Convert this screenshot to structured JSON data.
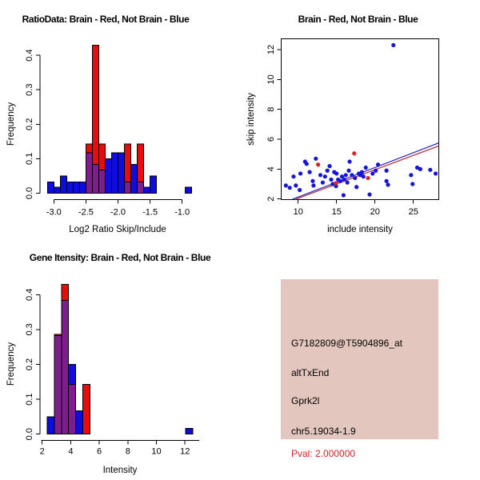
{
  "window": {
    "background": "#ffffff"
  },
  "colors": {
    "hist_blue": "#0D0DE0",
    "hist_red": "#EA0B0B",
    "hist_overlap": "#7D1E8C",
    "point_blue": "#1414DC",
    "point_red": "#E02020",
    "fit_line_blue": "#2020C0",
    "fit_line_red": "#C02020",
    "info_bg": "#E3C7BE",
    "pval_red": "#CD2626",
    "axis": "#000000"
  },
  "chart_data": [
    {
      "id": "ratio-histogram",
      "type": "bar",
      "title": "RatioData: Brain - Red, Not Brain - Blue",
      "xlabel": "Log2 Ratio Skip/Include",
      "ylabel": "Frequency",
      "xlim": [
        -3.15,
        -0.75
      ],
      "ylim": [
        0,
        0.44
      ],
      "grid": false,
      "xticks": [
        {
          "v": -3.0,
          "t": "-3.0"
        },
        {
          "v": -2.5,
          "t": "-2.5"
        },
        {
          "v": -2.0,
          "t": "-2.0"
        },
        {
          "v": -1.5,
          "t": "-1.5"
        },
        {
          "v": -1.0,
          "t": "-1.0"
        }
      ],
      "yticks": [
        {
          "v": 0.0,
          "t": "0.0"
        },
        {
          "v": 0.1,
          "t": "0.1"
        },
        {
          "v": 0.2,
          "t": "0.2"
        },
        {
          "v": 0.3,
          "t": "0.3"
        },
        {
          "v": 0.4,
          "t": "0.4"
        }
      ],
      "bin_width": 0.1,
      "legend_note": "Brain - Red, Not Brain - Blue",
      "bars": [
        {
          "x0": -3.1,
          "blue": 0.033,
          "red": 0
        },
        {
          "x0": -3.0,
          "blue": 0.017,
          "red": 0
        },
        {
          "x0": -2.9,
          "blue": 0.05,
          "red": 0
        },
        {
          "x0": -2.8,
          "blue": 0.033,
          "red": 0
        },
        {
          "x0": -2.7,
          "blue": 0.033,
          "red": 0
        },
        {
          "x0": -2.6,
          "blue": 0.033,
          "red": 0
        },
        {
          "x0": -2.5,
          "blue": 0.117,
          "red": 0.143
        },
        {
          "x0": -2.4,
          "blue": 0.083,
          "red": 0.429
        },
        {
          "x0": -2.3,
          "blue": 0.067,
          "red": 0.143
        },
        {
          "x0": -2.2,
          "blue": 0.1,
          "red": 0
        },
        {
          "x0": -2.1,
          "blue": 0.117,
          "red": 0
        },
        {
          "x0": -2.0,
          "blue": 0.117,
          "red": 0
        },
        {
          "x0": -1.9,
          "blue": 0.033,
          "red": 0.143
        },
        {
          "x0": -1.8,
          "blue": 0.083,
          "red": 0
        },
        {
          "x0": -1.7,
          "blue": 0.033,
          "red": 0.143
        },
        {
          "x0": -1.6,
          "blue": 0.017,
          "red": 0
        },
        {
          "x0": -1.5,
          "blue": 0.05,
          "red": 0
        },
        {
          "x0": -0.95,
          "blue": 0.017,
          "red": 0
        }
      ]
    },
    {
      "id": "intensity-scatter",
      "type": "scatter",
      "title": "Brain - Red, Not Brain - Blue",
      "xlabel": "include intensity",
      "ylabel": "skip intensity",
      "xlim": [
        7.8,
        28.3
      ],
      "ylim": [
        1.95,
        12.75
      ],
      "grid": false,
      "xticks": [
        {
          "v": 10,
          "t": "10"
        },
        {
          "v": 15,
          "t": "15"
        },
        {
          "v": 20,
          "t": "20"
        },
        {
          "v": 25,
          "t": "25"
        }
      ],
      "yticks": [
        {
          "v": 2,
          "t": "2"
        },
        {
          "v": 4,
          "t": "4"
        },
        {
          "v": 6,
          "t": "6"
        },
        {
          "v": 8,
          "t": "8"
        },
        {
          "v": 10,
          "t": "10"
        },
        {
          "v": 12,
          "t": "12"
        }
      ],
      "series": [
        {
          "name": "Not Brain (blue)",
          "points": [
            [
              8.4,
              2.9
            ],
            [
              8.9,
              2.75
            ],
            [
              9.4,
              3.5
            ],
            [
              9.7,
              2.9
            ],
            [
              10.2,
              2.6
            ],
            [
              10.3,
              3.7
            ],
            [
              10.9,
              4.5
            ],
            [
              11.1,
              4.35
            ],
            [
              11.5,
              3.8
            ],
            [
              11.9,
              3.2
            ],
            [
              12.0,
              2.9
            ],
            [
              12.3,
              4.7
            ],
            [
              12.9,
              3.6
            ],
            [
              13.2,
              3.1
            ],
            [
              13.5,
              3.5
            ],
            [
              13.8,
              3.9
            ],
            [
              14.1,
              4.2
            ],
            [
              14.3,
              3.3
            ],
            [
              14.5,
              3.0
            ],
            [
              14.7,
              3.8
            ],
            [
              14.93,
              2.86
            ],
            [
              15.0,
              3.7
            ],
            [
              15.2,
              3.3
            ],
            [
              15.5,
              3.2
            ],
            [
              15.7,
              3.5
            ],
            [
              15.9,
              2.25
            ],
            [
              16.0,
              3.3
            ],
            [
              16.2,
              3.6
            ],
            [
              16.4,
              3.1
            ],
            [
              16.6,
              3.9
            ],
            [
              16.7,
              4.5
            ],
            [
              17.0,
              3.6
            ],
            [
              17.4,
              3.4
            ],
            [
              17.6,
              2.8
            ],
            [
              17.9,
              3.7
            ],
            [
              18.1,
              3.6
            ],
            [
              18.3,
              3.8
            ],
            [
              18.5,
              3.5
            ],
            [
              18.8,
              4.1
            ],
            [
              19.3,
              2.3
            ],
            [
              19.7,
              3.7
            ],
            [
              20.1,
              3.9
            ],
            [
              20.4,
              4.3
            ],
            [
              21.5,
              3.9
            ],
            [
              21.5,
              3.2
            ],
            [
              21.7,
              2.95
            ],
            [
              22.4,
              12.3
            ],
            [
              24.7,
              3.6
            ],
            [
              24.9,
              3.0
            ],
            [
              25.5,
              4.1
            ],
            [
              25.9,
              4.0
            ],
            [
              27.2,
              3.95
            ],
            [
              27.9,
              3.7
            ]
          ]
        },
        {
          "name": "Brain (red)",
          "points": [
            [
              12.6,
              4.3
            ],
            [
              14.9,
              3.05
            ],
            [
              17.3,
              5.05
            ],
            [
              19.1,
              3.4
            ]
          ]
        }
      ],
      "fit_lines": [
        {
          "name": "blue-fit",
          "x1": 9.2,
          "y1": 1.97,
          "x2": 28.3,
          "y2": 5.75
        },
        {
          "name": "red-fit",
          "x1": 9.6,
          "y1": 1.97,
          "x2": 28.3,
          "y2": 5.55
        }
      ]
    },
    {
      "id": "gene-intensity-histogram",
      "type": "bar",
      "title": "Gene Itensity: Brain - Red, Not Brain - Blue",
      "xlabel": "Intensity",
      "ylabel": "Frequency",
      "xlim": [
        2.0,
        13.0
      ],
      "ylim": [
        0,
        0.44
      ],
      "grid": false,
      "xticks": [
        {
          "v": 2,
          "t": "2"
        },
        {
          "v": 4,
          "t": "4"
        },
        {
          "v": 6,
          "t": "6"
        },
        {
          "v": 8,
          "t": "8"
        },
        {
          "v": 10,
          "t": "10"
        },
        {
          "v": 12,
          "t": "12"
        }
      ],
      "yticks": [
        {
          "v": 0.0,
          "t": "0.0"
        },
        {
          "v": 0.1,
          "t": "0.1"
        },
        {
          "v": 0.2,
          "t": "0.2"
        },
        {
          "v": 0.3,
          "t": "0.3"
        },
        {
          "v": 0.4,
          "t": "0.4"
        }
      ],
      "bin_width": 0.5,
      "legend_note": "Brain - Red, Not Brain - Blue",
      "bars": [
        {
          "x0": 2.35,
          "blue": 0.05,
          "red": 0
        },
        {
          "x0": 2.85,
          "blue": 0.283,
          "red": 0.286
        },
        {
          "x0": 3.35,
          "blue": 0.383,
          "red": 0.429
        },
        {
          "x0": 3.85,
          "blue": 0.2,
          "red": 0.143
        },
        {
          "x0": 4.35,
          "blue": 0.067,
          "red": 0
        },
        {
          "x0": 4.85,
          "blue": 0,
          "red": 0.143
        },
        {
          "x0": 12.05,
          "blue": 0.017,
          "red": 0
        }
      ]
    }
  ],
  "info_panel": {
    "lines": [
      {
        "text": "G7182809@T5904896_at",
        "color": "#000000"
      },
      {
        "text": "altTxEnd",
        "color": "#000000"
      },
      {
        "text": "Gprk2l",
        "color": "#000000"
      },
      {
        "text": "chr5.19034-1.9",
        "color": "#000000"
      },
      {
        "text": "Pval: 2.000000",
        "color": "#CD2626"
      }
    ]
  }
}
